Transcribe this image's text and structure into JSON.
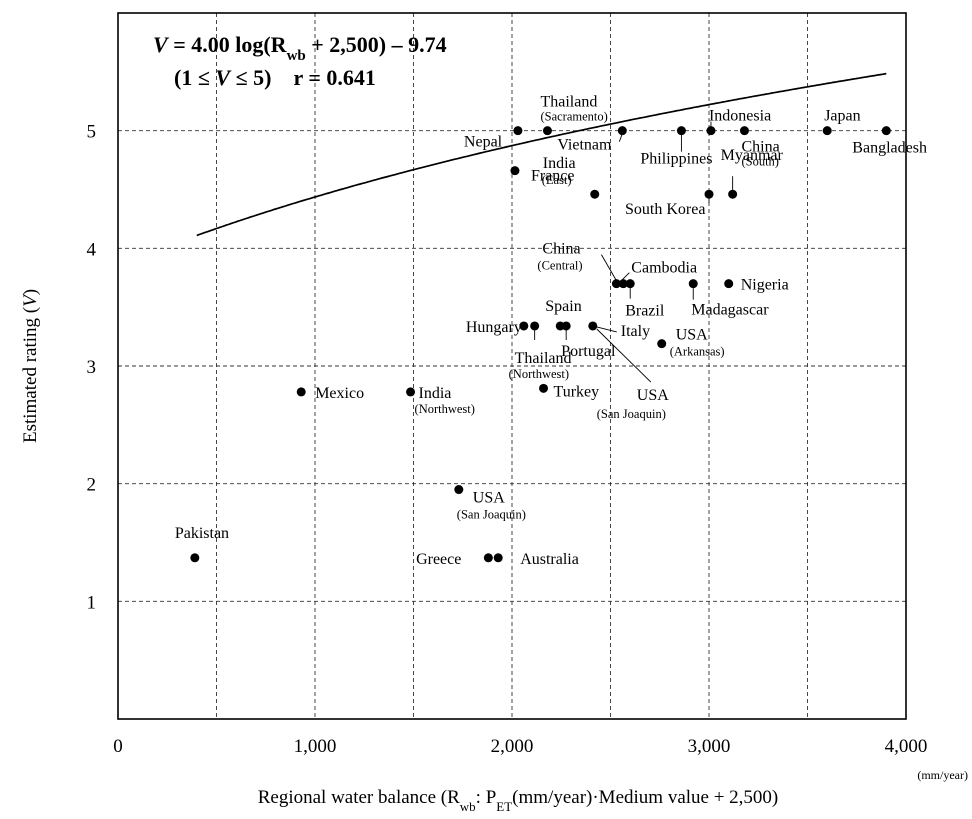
{
  "chart_data": {
    "type": "scatter",
    "equation": {
      "line1": [
        "V",
        " = 4.00 log(R",
        "wb",
        " + 2,500) – 9.74"
      ],
      "line2": [
        "(1 ≤ ",
        "V",
        " ≤ 5)    r = 0.641"
      ]
    },
    "xlabel": {
      "pre": "Regional water balance (R",
      "sub1": "wb",
      "mid": ": P",
      "sub2": "ET",
      "post": "(mm/year)·Medium value + 2,500)"
    },
    "xunit": "(mm/year)",
    "ylabel": {
      "pre": "Estimated rating (",
      "var": "V",
      "post": ")"
    },
    "xlim": [
      0,
      4000
    ],
    "ylim": [
      0,
      6
    ],
    "xticks": [
      {
        "v": 0,
        "label": "0"
      },
      {
        "v": 1000,
        "label": "1,000"
      },
      {
        "v": 2000,
        "label": "2,000"
      },
      {
        "v": 3000,
        "label": "3,000"
      },
      {
        "v": 4000,
        "label": "4,000"
      }
    ],
    "yticks": [
      {
        "v": 1,
        "label": "1"
      },
      {
        "v": 2,
        "label": "2"
      },
      {
        "v": 3,
        "label": "3"
      },
      {
        "v": 4,
        "label": "4"
      },
      {
        "v": 5,
        "label": "5"
      }
    ],
    "vgrid": [
      500,
      1000,
      1500,
      2000,
      2500,
      3000,
      3500
    ],
    "grid": "dashed",
    "curve": {
      "a": 4.0,
      "b": 2500,
      "c": -9.74,
      "xmin": 400,
      "xmax": 3900
    },
    "points": [
      {
        "name": "Pakistan",
        "x": 390,
        "y": 1.37
      },
      {
        "name": "Mexico",
        "x": 930,
        "y": 2.78
      },
      {
        "name": "India",
        "sub": "(Northwest)",
        "x": 1485,
        "y": 2.78
      },
      {
        "name": "USA",
        "sub": "(San Joaquin)",
        "x": 1730,
        "y": 1.95
      },
      {
        "name": "Greece",
        "x": 1880,
        "y": 1.37
      },
      {
        "name": "Australia",
        "x": 1930,
        "y": 1.37
      },
      {
        "name": "Hungary",
        "x": 2060,
        "y": 3.34
      },
      {
        "name": "Thailand",
        "sub": "(Northwest)",
        "x": 2115,
        "y": 3.34
      },
      {
        "name": "Turkey",
        "x": 2160,
        "y": 2.81
      },
      {
        "name": "Spain",
        "x": 2245,
        "y": 3.34
      },
      {
        "name": "Portugal",
        "x": 2275,
        "y": 3.34
      },
      {
        "name": "Italy",
        "x": 2410,
        "y": 3.34
      },
      {
        "name": "USA",
        "sub": "(San Joaquin)",
        "x": 2410,
        "y": 3.34,
        "second": true
      },
      {
        "name": "USA",
        "sub": "(Arkansas)",
        "x": 2760,
        "y": 3.19
      },
      {
        "name": "China",
        "sub": "(Central)",
        "x": 2530,
        "y": 3.7
      },
      {
        "name": "Cambodia",
        "x": 2565,
        "y": 3.7
      },
      {
        "name": "Brazil",
        "x": 2600,
        "y": 3.7
      },
      {
        "name": "Madagascar",
        "x": 2920,
        "y": 3.7
      },
      {
        "name": "Nigeria",
        "x": 3100,
        "y": 3.7
      },
      {
        "name": "France",
        "x": 2015,
        "y": 4.66
      },
      {
        "name": "India",
        "sub": "(East)",
        "x": 2420,
        "y": 4.46
      },
      {
        "name": "South Korea",
        "x": 3000,
        "y": 4.46
      },
      {
        "name": "Myanmar",
        "x": 3120,
        "y": 4.46
      },
      {
        "name": "Nepal",
        "x": 2030,
        "y": 5.0
      },
      {
        "name": "Thailand",
        "sub": "(Sacramento)",
        "x": 2180,
        "y": 5.0
      },
      {
        "name": "Vietnam",
        "x": 2560,
        "y": 5.0
      },
      {
        "name": "Philippines",
        "x": 2860,
        "y": 5.0
      },
      {
        "name": "Indonesia",
        "x": 3010,
        "y": 5.0
      },
      {
        "name": "China",
        "sub": "(South)",
        "x": 3180,
        "y": 5.0
      },
      {
        "name": "Japan",
        "x": 3600,
        "y": 5.0
      },
      {
        "name": "Bangladesh",
        "x": 3900,
        "y": 5.0
      }
    ]
  }
}
